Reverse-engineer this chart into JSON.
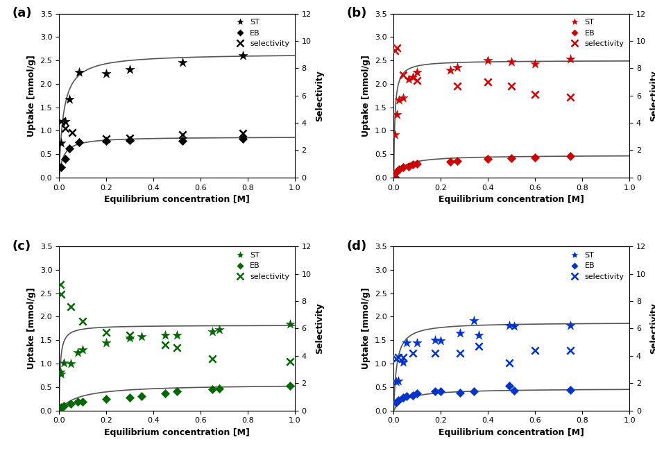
{
  "panels": [
    {
      "label": "(a)",
      "color": "#000000",
      "ST_x": [
        0.01,
        0.025,
        0.045,
        0.085,
        0.2,
        0.3,
        0.525,
        0.78
      ],
      "ST_y": [
        0.74,
        1.2,
        1.67,
        2.25,
        2.22,
        2.31,
        2.45,
        2.6
      ],
      "EB_x": [
        0.01,
        0.025,
        0.045,
        0.085,
        0.2,
        0.3,
        0.525,
        0.78
      ],
      "EB_y": [
        0.22,
        0.4,
        0.62,
        0.76,
        0.78,
        0.8,
        0.78,
        0.82
      ],
      "SEL_x": [
        0.01,
        0.025,
        0.055,
        0.2,
        0.3,
        0.525,
        0.78
      ],
      "SEL_y": [
        4.1,
        3.6,
        3.3,
        2.85,
        2.9,
        3.15,
        3.25
      ],
      "ST_fit_params": [
        2.65,
        55.0
      ],
      "EB_fit_params": [
        0.87,
        55.0
      ],
      "ylim_left": [
        0,
        3.5
      ],
      "ylim_right": [
        0,
        12
      ],
      "yticks_left": [
        0.0,
        0.5,
        1.0,
        1.5,
        2.0,
        2.5,
        3.0,
        3.5
      ],
      "yticks_right": [
        0,
        2,
        4,
        6,
        8,
        10,
        12
      ]
    },
    {
      "label": "(b)",
      "color": "#cc0000",
      "ST_x": [
        0.005,
        0.012,
        0.022,
        0.04,
        0.062,
        0.082,
        0.1,
        0.24,
        0.27,
        0.4,
        0.5,
        0.6,
        0.75
      ],
      "ST_y": [
        0.92,
        1.35,
        1.65,
        1.7,
        2.1,
        2.15,
        2.25,
        2.3,
        2.35,
        2.5,
        2.47,
        2.43,
        2.53
      ],
      "EB_x": [
        0.005,
        0.012,
        0.022,
        0.04,
        0.062,
        0.082,
        0.1,
        0.24,
        0.27,
        0.4,
        0.5,
        0.6,
        0.75
      ],
      "EB_y": [
        0.02,
        0.13,
        0.18,
        0.22,
        0.23,
        0.28,
        0.3,
        0.34,
        0.35,
        0.4,
        0.41,
        0.43,
        0.46
      ],
      "SEL_x": [
        0.005,
        0.012,
        0.04,
        0.1,
        0.27,
        0.4,
        0.5,
        0.6,
        0.75
      ],
      "SEL_y": [
        9.3,
        9.5,
        7.5,
        7.1,
        6.7,
        7.0,
        6.7,
        6.1,
        5.9
      ],
      "ST_fit_params": [
        2.5,
        200.0
      ],
      "EB_fit_params": [
        0.48,
        25.0
      ],
      "ylim_left": [
        0,
        3.5
      ],
      "ylim_right": [
        0,
        12
      ],
      "yticks_left": [
        0.0,
        0.5,
        1.0,
        1.5,
        2.0,
        2.5,
        3.0,
        3.5
      ],
      "yticks_right": [
        0,
        2,
        4,
        6,
        8,
        10,
        12
      ]
    },
    {
      "label": "(c)",
      "color": "#006600",
      "ST_x": [
        0.005,
        0.01,
        0.02,
        0.05,
        0.08,
        0.1,
        0.2,
        0.3,
        0.35,
        0.45,
        0.5,
        0.65,
        0.68,
        0.98
      ],
      "ST_y": [
        0.82,
        0.78,
        1.01,
        1.0,
        1.23,
        1.3,
        1.45,
        1.55,
        1.58,
        1.6,
        1.6,
        1.68,
        1.72,
        1.84
      ],
      "EB_x": [
        0.005,
        0.01,
        0.02,
        0.05,
        0.08,
        0.1,
        0.2,
        0.3,
        0.35,
        0.45,
        0.5,
        0.65,
        0.68,
        0.98
      ],
      "EB_y": [
        0.03,
        0.07,
        0.1,
        0.14,
        0.18,
        0.19,
        0.24,
        0.27,
        0.3,
        0.37,
        0.4,
        0.45,
        0.47,
        0.52
      ],
      "SEL_x": [
        0.005,
        0.01,
        0.05,
        0.1,
        0.2,
        0.3,
        0.45,
        0.5,
        0.65,
        0.98
      ],
      "SEL_y": [
        9.2,
        8.5,
        7.6,
        6.5,
        5.7,
        5.5,
        4.8,
        4.6,
        3.8,
        3.6
      ],
      "ST_fit_params": [
        1.82,
        200.0
      ],
      "EB_fit_params": [
        0.56,
        12.0
      ],
      "ylim_left": [
        0,
        3.5
      ],
      "ylim_right": [
        0,
        12
      ],
      "yticks_left": [
        0.0,
        0.5,
        1.0,
        1.5,
        2.0,
        2.5,
        3.0,
        3.5
      ],
      "yticks_right": [
        0,
        2,
        4,
        6,
        8,
        10,
        12
      ]
    },
    {
      "label": "(d)",
      "color": "#0033cc",
      "ST_x": [
        0.01,
        0.02,
        0.04,
        0.055,
        0.1,
        0.175,
        0.2,
        0.28,
        0.34,
        0.36,
        0.49,
        0.51,
        0.75
      ],
      "ST_y": [
        0.62,
        0.63,
        1.03,
        1.44,
        1.45,
        1.5,
        1.49,
        1.65,
        1.92,
        1.6,
        1.82,
        1.8,
        1.82
      ],
      "EB_x": [
        0.01,
        0.02,
        0.04,
        0.055,
        0.08,
        0.1,
        0.175,
        0.2,
        0.28,
        0.34,
        0.49,
        0.51,
        0.75
      ],
      "EB_y": [
        0.17,
        0.22,
        0.28,
        0.3,
        0.32,
        0.37,
        0.4,
        0.4,
        0.38,
        0.4,
        0.52,
        0.42,
        0.44
      ],
      "SEL_x": [
        0.01,
        0.02,
        0.04,
        0.08,
        0.175,
        0.28,
        0.36,
        0.49,
        0.6,
        0.75
      ],
      "SEL_y": [
        3.8,
        3.9,
        3.9,
        4.2,
        4.2,
        4.2,
        4.7,
        3.5,
        4.4,
        4.4
      ],
      "ST_fit_params": [
        1.88,
        80.0
      ],
      "EB_fit_params": [
        0.47,
        20.0
      ],
      "ylim_left": [
        0,
        3.5
      ],
      "ylim_right": [
        0,
        12
      ],
      "yticks_left": [
        0.0,
        0.5,
        1.0,
        1.5,
        2.0,
        2.5,
        3.0,
        3.5
      ],
      "yticks_right": [
        0,
        2,
        4,
        6,
        8,
        10,
        12
      ]
    }
  ],
  "xlabel": "Equilibrium concentration [M]",
  "ylabel_left": "Uptake [mmol/g]",
  "ylabel_right": "Selectivity",
  "xlim": [
    0,
    1.0
  ],
  "xticks": [
    0.0,
    0.2,
    0.4,
    0.6,
    0.8,
    1.0
  ],
  "fit_color": "#555555",
  "fit_linewidth": 1.2
}
